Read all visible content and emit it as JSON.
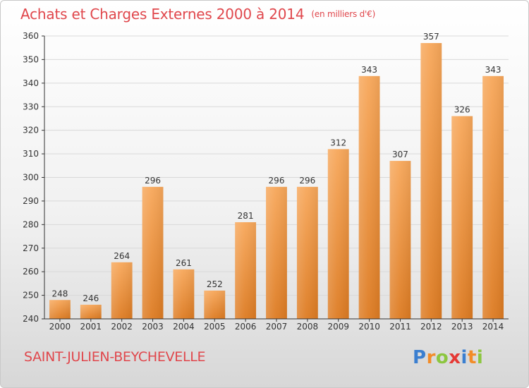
{
  "header": {
    "title": "Achats et Charges Externes 2000 à 2014",
    "unit": "(en milliers d'€)"
  },
  "footer": {
    "commune": "SAINT-JULIEN-BEYCHEVELLE",
    "logo_letters": [
      "P",
      "r",
      "o",
      "x",
      "i",
      "t",
      "i"
    ],
    "logo_colors": [
      "#3b7fd0",
      "#f28c28",
      "#8cc63f",
      "#e53935",
      "#3b7fd0",
      "#f28c28",
      "#8cc63f"
    ]
  },
  "colors": {
    "title": "#e0474c",
    "bar_light": "#f7a75a",
    "bar_dark": "#dd7b22",
    "grid": "#d9d9d9",
    "axis": "#333333"
  },
  "chart_data": {
    "type": "bar",
    "categories": [
      "2000",
      "2001",
      "2002",
      "2003",
      "2004",
      "2005",
      "2006",
      "2007",
      "2008",
      "2009",
      "2010",
      "2011",
      "2012",
      "2013",
      "2014"
    ],
    "values": [
      248,
      246,
      264,
      296,
      261,
      252,
      281,
      296,
      296,
      312,
      343,
      307,
      357,
      326,
      343
    ],
    "ylim": [
      240,
      360
    ],
    "yticks": [
      240,
      250,
      260,
      270,
      280,
      290,
      300,
      310,
      320,
      330,
      340,
      350,
      360
    ],
    "grid": true,
    "data_labels": true
  }
}
